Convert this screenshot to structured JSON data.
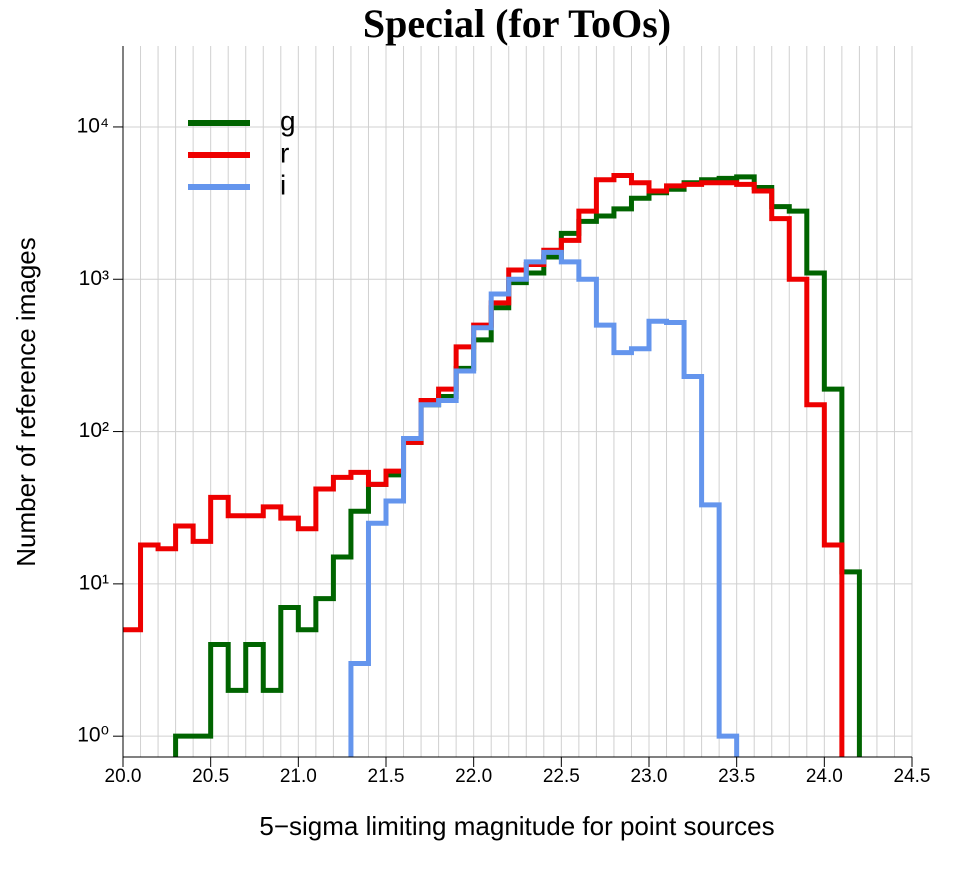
{
  "chart_data": {
    "type": "step-histogram",
    "title": "Special (for ToOs)",
    "x_label": "5−sigma limiting magnitude for point sources",
    "y_label": "Number of reference images",
    "log_y": true,
    "grid": true,
    "legend": "upper left",
    "bins": [
      20.0,
      20.1,
      20.2,
      20.3,
      20.4,
      20.5,
      20.6,
      20.7,
      20.8,
      20.9,
      21.0,
      21.1,
      21.2,
      21.3,
      21.4,
      21.5,
      21.6,
      21.7,
      21.8,
      21.9,
      22.0,
      22.1,
      22.2,
      22.3,
      22.4,
      22.5,
      22.6,
      22.7,
      22.8,
      22.9,
      23.0,
      23.1,
      23.2,
      23.3,
      23.4,
      23.5,
      23.6,
      23.7,
      23.8,
      23.9,
      24.0,
      24.1,
      24.2,
      24.3,
      24.4,
      24.5
    ],
    "xlim": [
      20,
      24.5
    ],
    "xticks": [
      {
        "value": 20,
        "label": "20.0"
      },
      20.5,
      {
        "value": 21,
        "label": "21.0"
      },
      21.5,
      {
        "value": 22,
        "label": "22.0"
      },
      22.5,
      {
        "value": 23,
        "label": "23.0"
      },
      23.5,
      {
        "value": 24,
        "label": "24.0"
      },
      24.5
    ],
    "ylim": [
      0.73,
      34000
    ],
    "yticks": [
      {
        "value": 1,
        "label": "10⁰"
      },
      {
        "value": 10,
        "label": "10¹"
      },
      {
        "value": 100,
        "label": "10²"
      },
      {
        "value": 1000,
        "label": "10³"
      },
      {
        "value": 10000,
        "label": "10⁴"
      }
    ],
    "series": [
      {
        "name": "g",
        "color": "#006400",
        "values": [
          0,
          0,
          0,
          1,
          1,
          4,
          2,
          4,
          2,
          7,
          5,
          8,
          15,
          30,
          45,
          52,
          85,
          150,
          170,
          260,
          400,
          650,
          950,
          1100,
          1400,
          2000,
          2400,
          2600,
          2900,
          3400,
          3700,
          3900,
          4300,
          4500,
          4600,
          4700,
          4000,
          3000,
          2800,
          1100,
          190,
          12,
          0,
          0,
          0
        ]
      },
      {
        "name": "r",
        "color": "#ee0000",
        "values": [
          5,
          18,
          17,
          24,
          19,
          37,
          28,
          28,
          32,
          27,
          23,
          42,
          50,
          54,
          45,
          55,
          85,
          160,
          190,
          360,
          500,
          700,
          1150,
          1250,
          1550,
          1800,
          2800,
          4500,
          4800,
          4300,
          3800,
          4100,
          4200,
          4300,
          4300,
          4200,
          3800,
          2500,
          1000,
          150,
          18,
          0,
          0,
          0,
          0
        ]
      },
      {
        "name": "i",
        "color": "#6495ed",
        "values": [
          0,
          0,
          0,
          0,
          0,
          0,
          0,
          0,
          0,
          0,
          0,
          0,
          0,
          3,
          25,
          35,
          90,
          150,
          160,
          250,
          480,
          800,
          1000,
          1300,
          1500,
          1300,
          1000,
          500,
          330,
          350,
          530,
          520,
          230,
          33,
          1,
          0,
          0,
          0,
          0,
          0,
          0,
          0,
          0,
          0,
          0
        ]
      }
    ]
  }
}
